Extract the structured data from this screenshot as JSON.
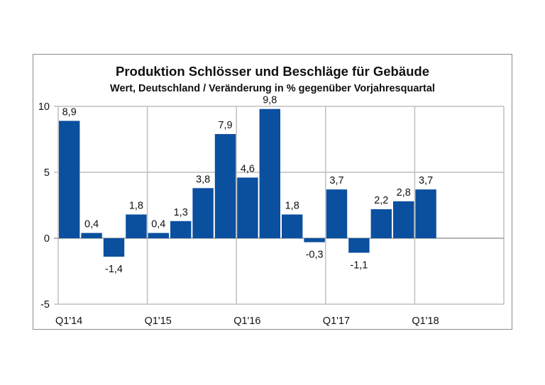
{
  "chart_data": {
    "type": "bar",
    "title": "Produktion Schlösser und Beschläge für Gebäude",
    "subtitle": "Wert, Deutschland / Veränderung in % gegenüber Vorjahresquartal",
    "xlabel": "",
    "ylabel": "",
    "ylim": [
      -5,
      10
    ],
    "yticks": [
      "-5",
      "0",
      "5",
      "10"
    ],
    "ytick_values": [
      -5,
      0,
      5,
      10
    ],
    "categories": [
      "Q1'14",
      "Q2'14",
      "Q3'14",
      "Q4'14",
      "Q1'15",
      "Q2'15",
      "Q3'15",
      "Q4'15",
      "Q1'16",
      "Q2'16",
      "Q3'16",
      "Q4'16",
      "Q1'17",
      "Q2'17",
      "Q3'17",
      "Q4'17",
      "Q1'18",
      "Q2'18",
      "Q3'18",
      "Q4'18"
    ],
    "xtick_labels": [
      "Q1'14",
      "Q1'15",
      "Q1'16",
      "Q1'17",
      "Q1'18"
    ],
    "values": [
      8.9,
      0.4,
      -1.4,
      1.8,
      0.4,
      1.3,
      3.8,
      7.9,
      4.6,
      9.8,
      1.8,
      -0.3,
      3.7,
      -1.1,
      2.2,
      2.8,
      3.7,
      null,
      null,
      null
    ],
    "data_labels": [
      "8,9",
      "0,4",
      "-1,4",
      "1,8",
      "0,4",
      "1,3",
      "3,8",
      "7,9",
      "4,6",
      "9,8",
      "1,8",
      "-0,3",
      "3,7",
      "-1,1",
      "2,2",
      "2,8",
      "3,7",
      null,
      null,
      null
    ],
    "bar_color": "#0b4f9f",
    "grid": true,
    "legend": "none"
  }
}
